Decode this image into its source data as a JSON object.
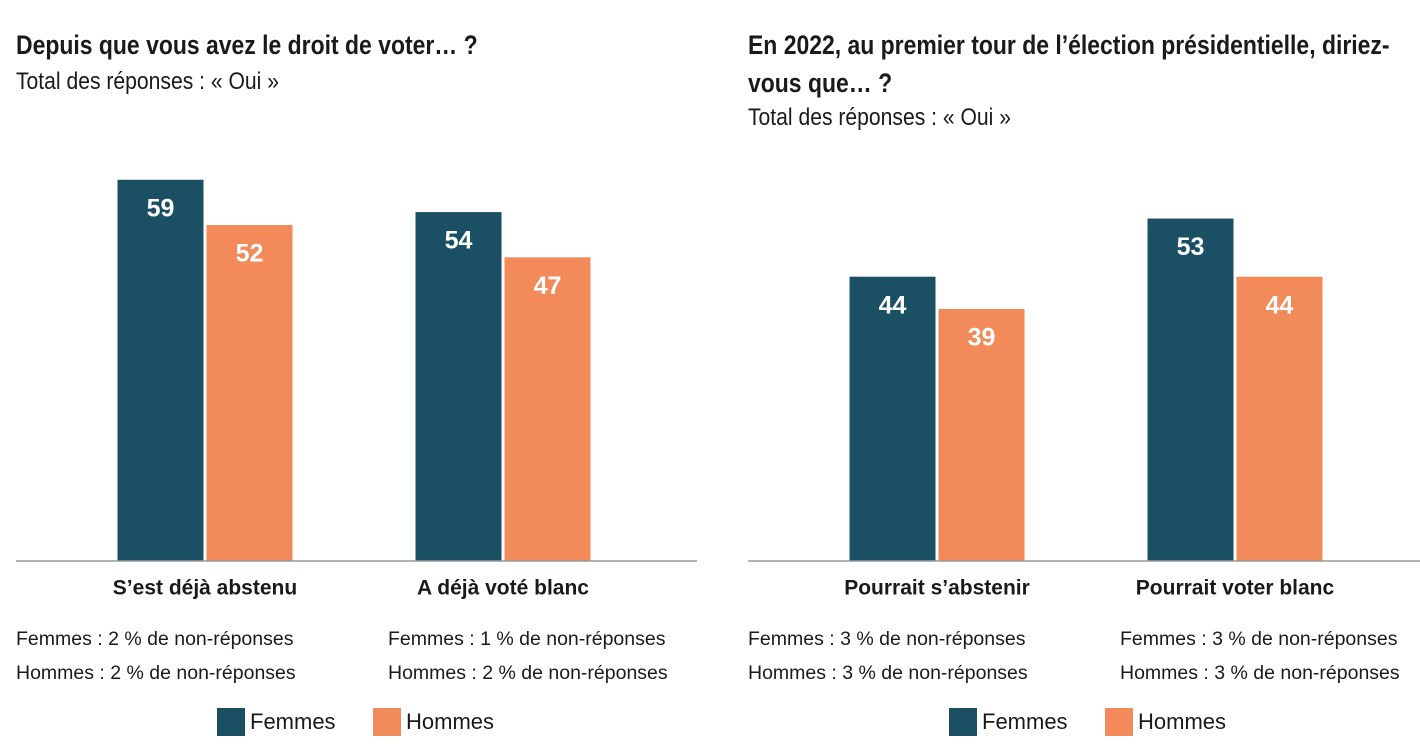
{
  "chart_data": [
    {
      "type": "bar",
      "title": "Depuis que vous avez le droit de voter… ?",
      "subtitle": "Total des réponses : « Oui »",
      "categories": [
        "S’est déjà abstenu",
        "A déjà voté blanc"
      ],
      "series": [
        {
          "name": "Femmes",
          "color": "#1b5064",
          "values": [
            59,
            54
          ]
        },
        {
          "name": "Hommes",
          "color": "#f28a5a",
          "values": [
            52,
            47
          ]
        }
      ],
      "notes": [
        [
          "Femmes : 2 % de non-réponses",
          "Hommes : 2 % de non-réponses"
        ],
        [
          "Femmes : 1 % de non-réponses",
          "Hommes : 2 % de non-réponses"
        ]
      ],
      "ylim": [
        0,
        65
      ]
    },
    {
      "type": "bar",
      "title": "En 2022, au premier tour de l’élection présidentielle, diriez-vous que… ?",
      "subtitle": "Total des réponses : « Oui »",
      "categories": [
        "Pourrait s’abstenir",
        "Pourrait voter blanc"
      ],
      "series": [
        {
          "name": "Femmes",
          "color": "#1b5064",
          "values": [
            44,
            53
          ]
        },
        {
          "name": "Hommes",
          "color": "#f28a5a",
          "values": [
            39,
            44
          ]
        }
      ],
      "notes": [
        [
          "Femmes : 3 % de non-réponses",
          "Hommes : 3 % de non-réponses"
        ],
        [
          "Femmes : 3 % de non-réponses",
          "Hommes : 3 % de non-réponses"
        ]
      ],
      "ylim": [
        0,
        65
      ]
    }
  ]
}
